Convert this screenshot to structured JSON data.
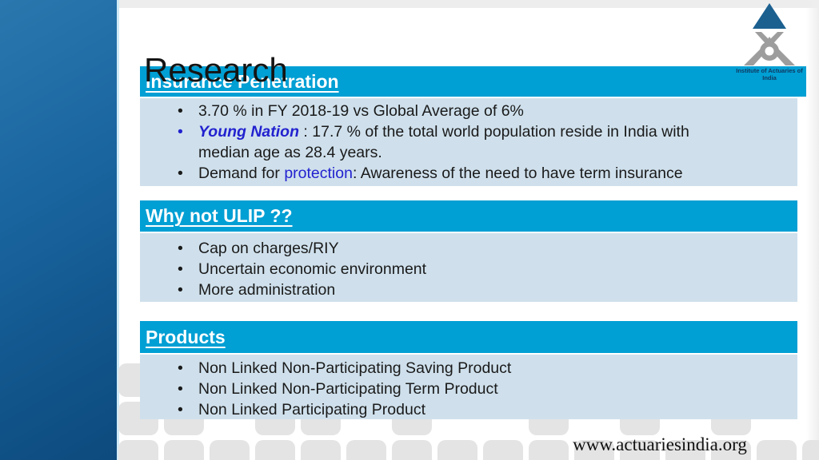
{
  "slide": {
    "title": "Research",
    "sections": [
      {
        "heading": "Insurance Penetration",
        "bullets": [
          {
            "marker_color": "#1a1a1a",
            "segments": [
              {
                "text": "3.70 % in FY 2018-19 vs Global Average of 6%"
              }
            ]
          },
          {
            "marker_color": "#2222cf",
            "segments": [
              {
                "text": "Young Nation",
                "color": "#2222cf",
                "bold": true,
                "italic": true
              },
              {
                "text": " : 17.7 % of the total world population reside in India with"
              },
              {
                "text": "median age as 28.4 years.",
                "newline": true
              }
            ]
          },
          {
            "marker_color": "#1a1a1a",
            "segments": [
              {
                "text": "Demand for "
              },
              {
                "text": "protection",
                "color": "#2222cf"
              },
              {
                "text": ": Awareness of the need to have term insurance"
              }
            ]
          }
        ]
      },
      {
        "heading": "Why not ULIP ??",
        "bullets": [
          {
            "marker_color": "#1a1a1a",
            "segments": [
              {
                "text": "Cap on charges/RIY"
              }
            ]
          },
          {
            "marker_color": "#1a1a1a",
            "segments": [
              {
                "text": "Uncertain economic environment"
              }
            ]
          },
          {
            "marker_color": "#1a1a1a",
            "segments": [
              {
                "text": "More administration"
              }
            ]
          }
        ]
      },
      {
        "heading": "Products",
        "bullets": [
          {
            "marker_color": "#1a1a1a",
            "segments": [
              {
                "text": "Non Linked Non-Participating Saving Product"
              }
            ]
          },
          {
            "marker_color": "#1a1a1a",
            "segments": [
              {
                "text": "Non Linked Non-Participating Term Product"
              }
            ]
          },
          {
            "marker_color": "#1a1a1a",
            "segments": [
              {
                "text": "Non Linked Participating Product"
              }
            ]
          }
        ]
      }
    ],
    "logo": {
      "caption": "Institute of Actuaries of India"
    },
    "footer": {
      "url": "www.actuariesindia.org"
    },
    "colors": {
      "accent_cyan": "#009fd4",
      "panel_blue": "#cfe0ec",
      "highlight_blue": "#2222cf",
      "sidebar_blue": "#155c92",
      "tile_gray": "#e4e4e4",
      "logo_navy": "#1c6090"
    }
  }
}
